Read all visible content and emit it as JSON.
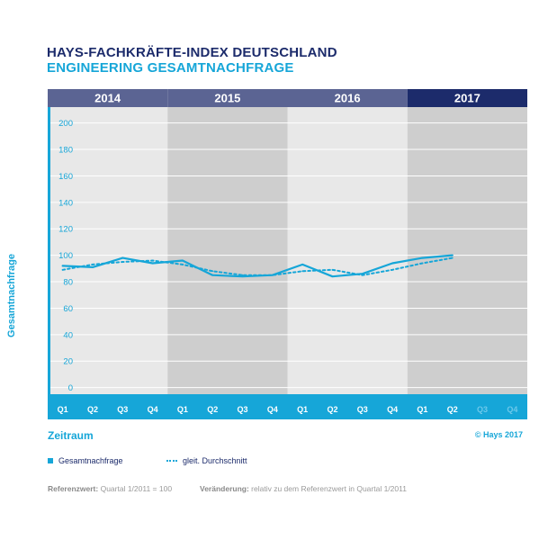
{
  "title": "HAYS-FACHKRÄFTE-INDEX DEUTSCHLAND",
  "subtitle": "ENGINEERING GESAMTNACHFRAGE",
  "colors": {
    "navy": "#1c2b6b",
    "cyan": "#16a6d8",
    "band_dark": "#5b6493",
    "bg_light": "#e8e8e8",
    "bg_dark": "#cecece"
  },
  "chart_data": {
    "type": "line",
    "years": [
      "2014",
      "2015",
      "2016",
      "2017"
    ],
    "x": [
      "Q1",
      "Q2",
      "Q3",
      "Q4",
      "Q1",
      "Q2",
      "Q3",
      "Q4",
      "Q1",
      "Q2",
      "Q3",
      "Q4",
      "Q1",
      "Q2",
      "Q3",
      "Q4"
    ],
    "series": [
      {
        "name": "Gesamtnachfrage",
        "style": "solid",
        "values": [
          92,
          91,
          98,
          94,
          96,
          85,
          84,
          85,
          93,
          84,
          86,
          94,
          98,
          100,
          null,
          null
        ]
      },
      {
        "name": "gleit. Durchschnitt",
        "style": "dotted",
        "values": [
          89,
          93,
          95,
          96,
          93,
          88,
          85,
          85,
          88,
          89,
          85,
          89,
          94,
          98,
          null,
          null
        ]
      }
    ],
    "ylabel": "Gesamtnachfrage",
    "xlabel": "Zeitraum",
    "yticks": [
      0,
      20,
      40,
      60,
      80,
      100,
      120,
      140,
      160,
      180,
      200
    ],
    "ylim": [
      -5,
      212
    ],
    "grid": true,
    "legend_position": "bottom-left"
  },
  "zeitraum": "Zeitraum",
  "copyright": "© Hays 2017",
  "legend": {
    "series1": "Gesamtnachfrage",
    "series2": "gleit. Durchschnitt"
  },
  "footnotes": {
    "ref_label": "Referenzwert:",
    "ref_value": "Quartal 1/2011 = 100",
    "change_label": "Veränderung:",
    "change_value": "relativ zu dem Referenzwert in Quartal 1/2011"
  }
}
